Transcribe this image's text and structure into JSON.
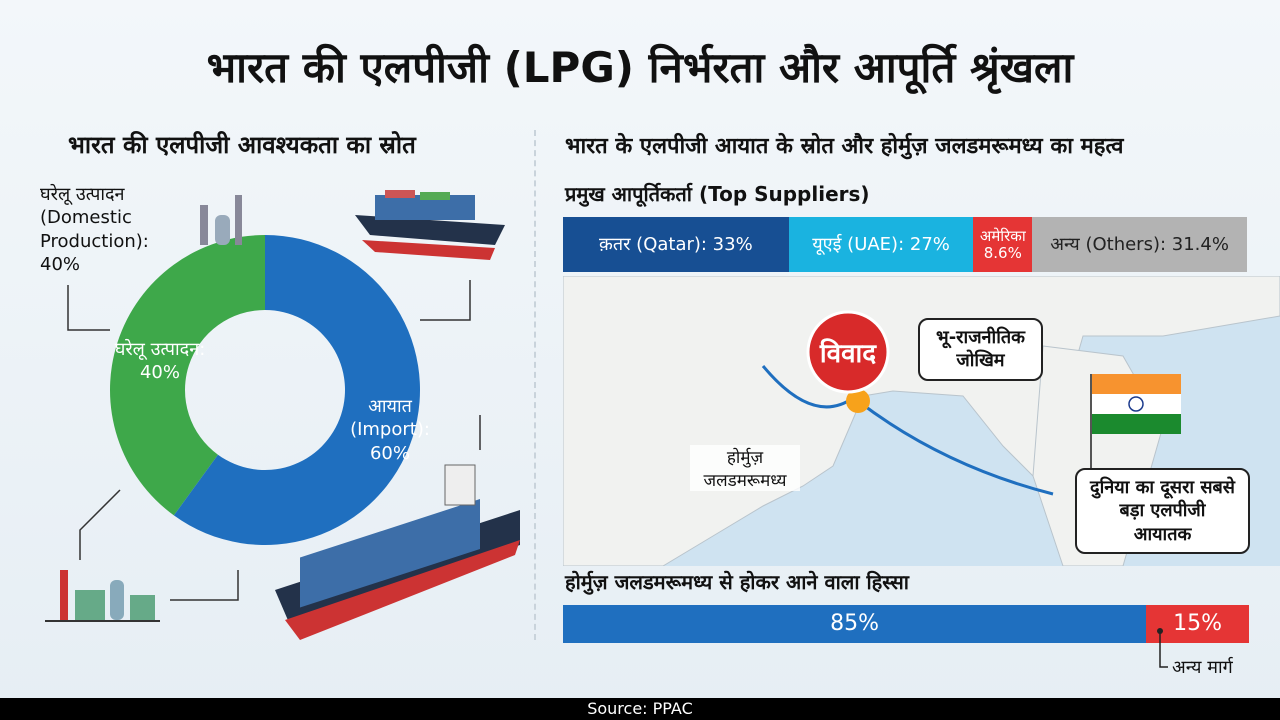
{
  "title": "भारत की एलपीजी (LPG) निर्भरता और आपूर्ति श्रृंखला",
  "left": {
    "subtitle": "भारत की एलपीजी आवश्यकता का स्रोत",
    "domestic_outer_label": "घरेलू उत्पादन (Domestic Production): 40%",
    "domestic_inner_label": "घरेलू उत्पादन: 40%",
    "import_label": "आयात (Import): 60%"
  },
  "right": {
    "subtitle": "भारत के एलपीजी आयात के स्रोत और होर्मुज़ जलडमरूमध्य का महत्व",
    "suppliers_title": "प्रमुख आपूर्तिकर्ता (Top Suppliers)",
    "dispute": "विवाद",
    "geo_risk": "भू-राजनीतिक जोखिम",
    "hormuz": "होर्मुज़ जलडमरूमध्य",
    "india_callout": "दुनिया का दूसरा सबसे बड़ा एलपीजी आयातक",
    "hormuz_share_title": "होर्मुज़ जलडमरूमध्य से होकर आने वाला हिस्सा",
    "other_route": "अन्य मार्ग"
  },
  "footer": "Source: PPAC",
  "chart_data": [
    {
      "type": "pie",
      "title": "भारत की एलपीजी आवश्यकता का स्रोत",
      "categories": [
        "घरेलू उत्पादन (Domestic Production)",
        "आयात (Import)"
      ],
      "values": [
        40,
        60
      ],
      "colors": [
        "#3ea84a",
        "#1f6fbf"
      ]
    },
    {
      "type": "bar",
      "stacked": true,
      "title": "प्रमुख आपूर्तिकर्ता (Top Suppliers)",
      "categories": [
        "क़तर (Qatar)",
        "यूएई (UAE)",
        "अमेरिका",
        "अन्य (Others)"
      ],
      "values": [
        33,
        27,
        8.6,
        31.4
      ],
      "labels": [
        "क़तर (Qatar): 33%",
        "यूएई (UAE): 27%",
        "अमेरिका 8.6%",
        "अन्य (Others): 31.4%"
      ],
      "colors": [
        "#174f93",
        "#1ab3e0",
        "#e53535",
        "#b3b3b3"
      ],
      "text_colors": [
        "#fff",
        "#fff",
        "#fff",
        "#222"
      ]
    },
    {
      "type": "bar",
      "stacked": true,
      "title": "होर्मुज़ जलडमरूमध्य से होकर आने वाला हिस्सा",
      "categories": [
        "Hormuz",
        "अन्य मार्ग"
      ],
      "values": [
        85,
        15
      ],
      "labels": [
        "85%",
        "15%"
      ],
      "colors": [
        "#1f6fbf",
        "#e53535"
      ]
    }
  ]
}
